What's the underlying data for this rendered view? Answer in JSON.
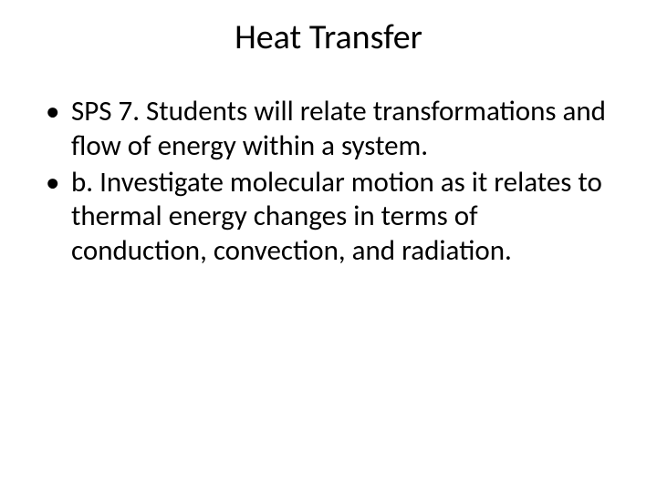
{
  "slide": {
    "title": "Heat Transfer",
    "bullets": [
      "SPS 7. Students will relate transformations and flow of energy within a system.",
      "b. Investigate molecular motion as it relates to thermal energy changes in terms of conduction, convection, and radiation."
    ]
  },
  "style": {
    "background_color": "#ffffff",
    "text_color": "#000000",
    "title_fontsize": 38,
    "body_fontsize": 31,
    "font_family": "Calibri"
  }
}
